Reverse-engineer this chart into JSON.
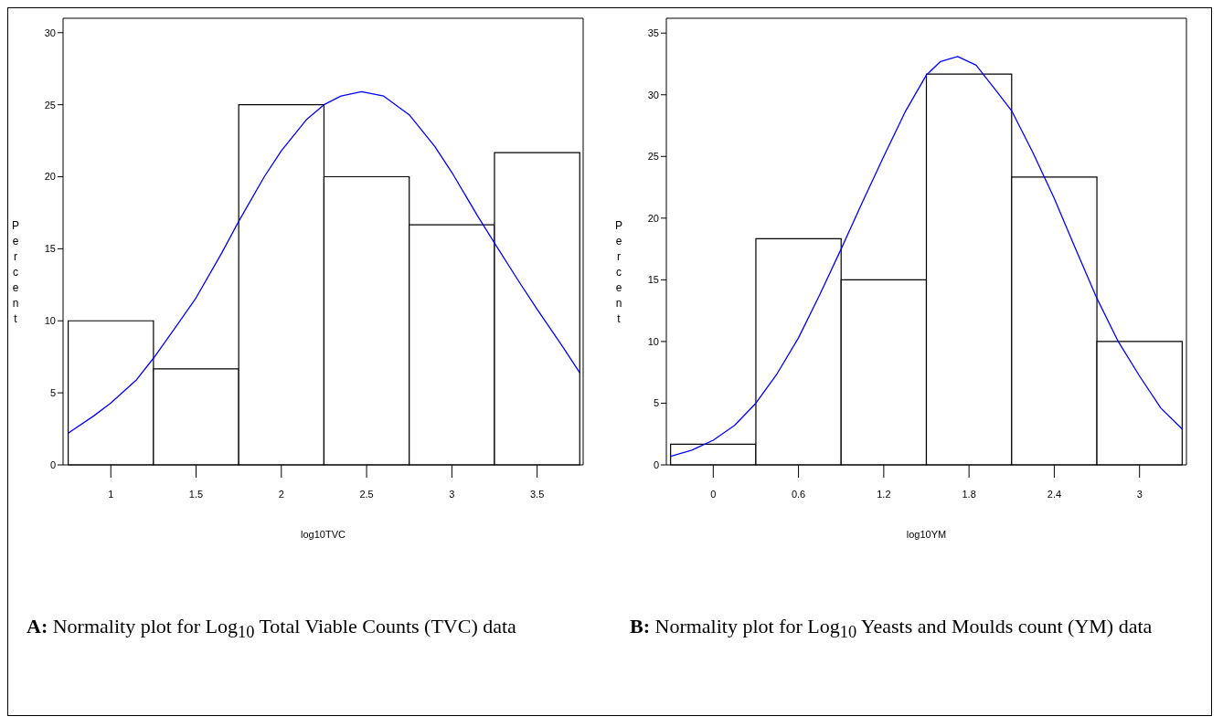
{
  "chart_data": [
    {
      "type": "histogram",
      "xlabel": "log10TVC",
      "ylabel": "Percent",
      "bins": [
        0.75,
        1.25,
        1.75,
        2.25,
        2.75,
        3.25,
        3.75
      ],
      "values": [
        10,
        6.67,
        25,
        20,
        16.67,
        21.67
      ],
      "color": "#ffffff",
      "xlim": [
        0.72,
        3.77
      ],
      "ylim": [
        0,
        31
      ],
      "xticks": [
        1,
        1.5,
        2,
        2.5,
        3,
        3.5
      ],
      "yticks": [
        0,
        5,
        10,
        15,
        20,
        25,
        30
      ],
      "series": [
        {
          "type": "line",
          "color": "#0000ff",
          "x": [
            0.75,
            0.9,
            1.0,
            1.15,
            1.25,
            1.4,
            1.5,
            1.65,
            1.75,
            1.9,
            2.0,
            2.15,
            2.25,
            2.35,
            2.47,
            2.6,
            2.75,
            2.9,
            3.0,
            3.15,
            3.25,
            3.4,
            3.5,
            3.65,
            3.75
          ],
          "values": [
            2.2,
            3.4,
            4.3,
            5.9,
            7.4,
            9.9,
            11.6,
            14.7,
            16.9,
            20.0,
            21.8,
            24.0,
            25.0,
            25.6,
            25.9,
            25.6,
            24.3,
            22.1,
            20.3,
            17.3,
            15.4,
            12.6,
            10.8,
            8.2,
            6.4
          ]
        }
      ],
      "annotations": [
        "A: Normality plot for Log$_{10}$ Total Viable Counts (TVC) data"
      ]
    },
    {
      "type": "histogram",
      "xlabel": "log10YM",
      "ylabel": "Percent",
      "bins": [
        -0.3,
        0.3,
        0.9,
        1.5,
        2.1,
        2.7,
        3.3
      ],
      "values": [
        1.67,
        18.33,
        15,
        31.67,
        23.33,
        10
      ],
      "color": "#ffffff",
      "xlim": [
        -0.33,
        3.33
      ],
      "ylim": [
        0,
        36.2
      ],
      "xticks": [
        0,
        0.6,
        1.2,
        1.8,
        2.4,
        3
      ],
      "yticks": [
        0,
        5,
        10,
        15,
        20,
        25,
        30,
        35
      ],
      "series": [
        {
          "type": "line",
          "color": "#0000ff",
          "x": [
            -0.3,
            -0.15,
            0,
            0.15,
            0.3,
            0.45,
            0.6,
            0.75,
            0.9,
            1.05,
            1.2,
            1.35,
            1.5,
            1.6,
            1.72,
            1.85,
            2.0,
            2.1,
            2.25,
            2.4,
            2.55,
            2.7,
            2.85,
            3.0,
            3.15,
            3.3
          ],
          "values": [
            0.7,
            1.2,
            2.0,
            3.2,
            5.0,
            7.4,
            10.3,
            13.8,
            17.5,
            21.3,
            25.0,
            28.6,
            31.6,
            32.7,
            33.1,
            32.4,
            30.2,
            28.7,
            25.3,
            21.6,
            17.5,
            13.5,
            10.0,
            7.2,
            4.6,
            2.9
          ]
        }
      ],
      "annotations": [
        "B: Normality plot for Log$_{10}$ Yeasts and Moulds count (YM) data"
      ]
    }
  ]
}
